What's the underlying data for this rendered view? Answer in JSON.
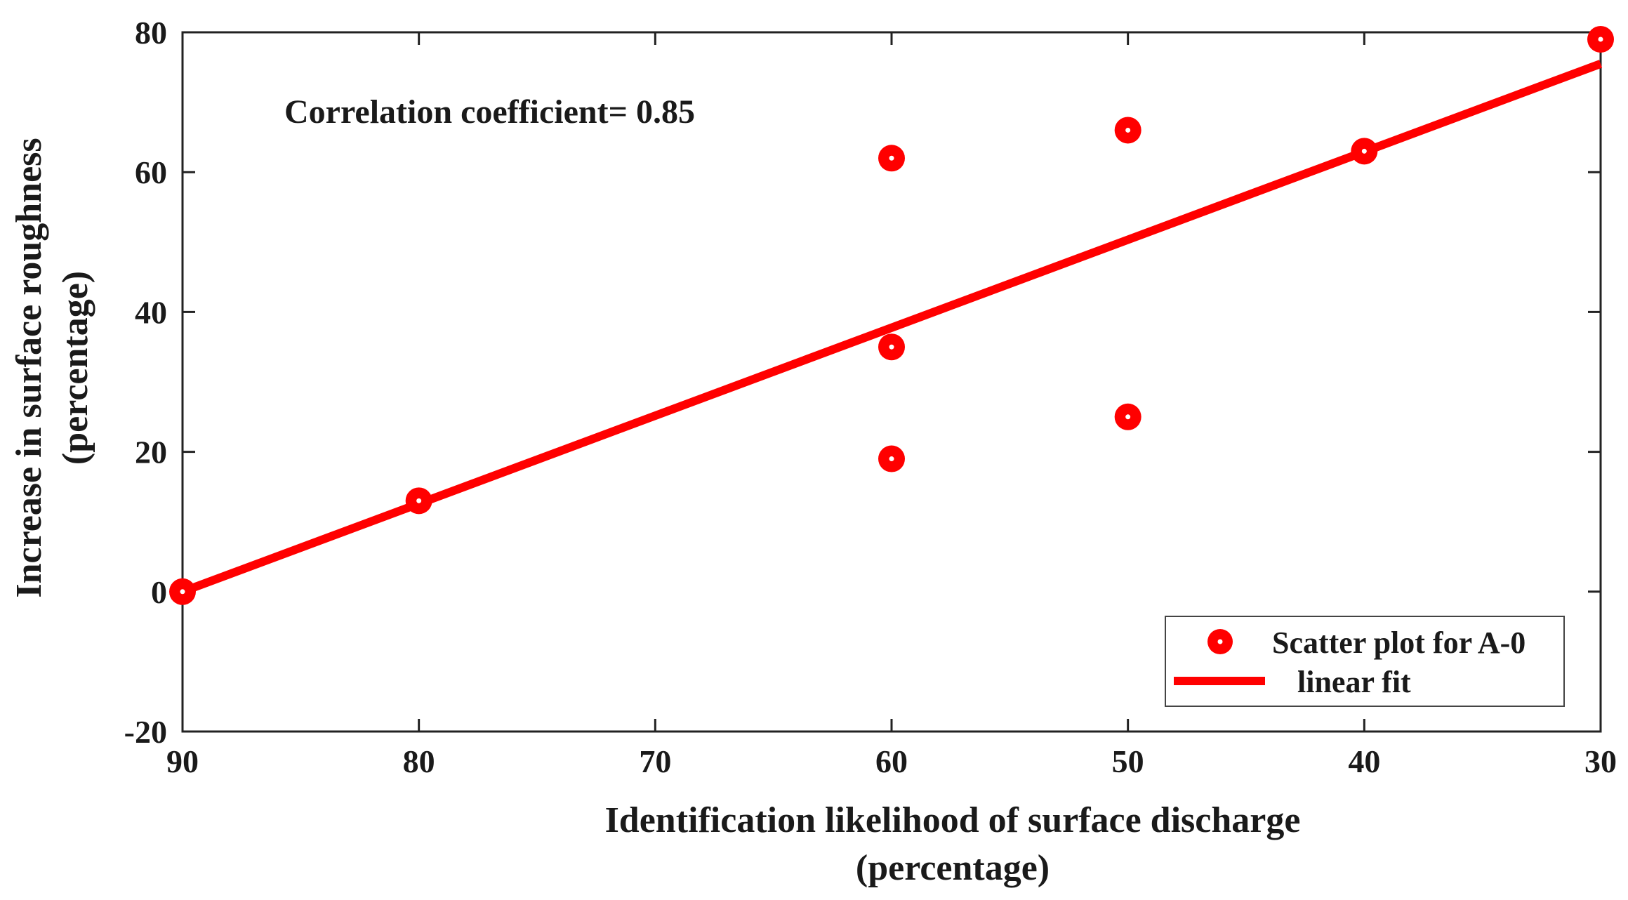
{
  "chart_data": {
    "type": "scatter",
    "title": "",
    "xlabel_line1": "Identification likelihood of surface discharge",
    "xlabel_line2": "(percentage)",
    "ylabel_line1": "Increase in surface roughness",
    "ylabel_line2": "(percentage)",
    "xlim": [
      90,
      30
    ],
    "ylim": [
      -20,
      80
    ],
    "x_reversed": true,
    "xticks": [
      90,
      80,
      70,
      60,
      50,
      40,
      30
    ],
    "yticks": [
      -20,
      0,
      20,
      40,
      60,
      80
    ],
    "grid": false,
    "annotation": "Correlation coefficient= 0.85",
    "series": [
      {
        "name": "Scatter plot for A-0",
        "kind": "scatter",
        "color": "#ff0000",
        "points": [
          {
            "x": 90,
            "y": 0
          },
          {
            "x": 80,
            "y": 13
          },
          {
            "x": 60,
            "y": 62
          },
          {
            "x": 60,
            "y": 35
          },
          {
            "x": 60,
            "y": 19
          },
          {
            "x": 50,
            "y": 66
          },
          {
            "x": 50,
            "y": 25
          },
          {
            "x": 40,
            "y": 63
          },
          {
            "x": 30,
            "y": 79
          }
        ]
      },
      {
        "name": "linear fit",
        "kind": "line",
        "color": "#ff0000",
        "points": [
          {
            "x": 90,
            "y": 0
          },
          {
            "x": 30,
            "y": 75.5
          }
        ]
      }
    ],
    "legend": {
      "position": "bottom-right",
      "entries": [
        "Scatter plot for A-0",
        "linear fit"
      ]
    }
  }
}
